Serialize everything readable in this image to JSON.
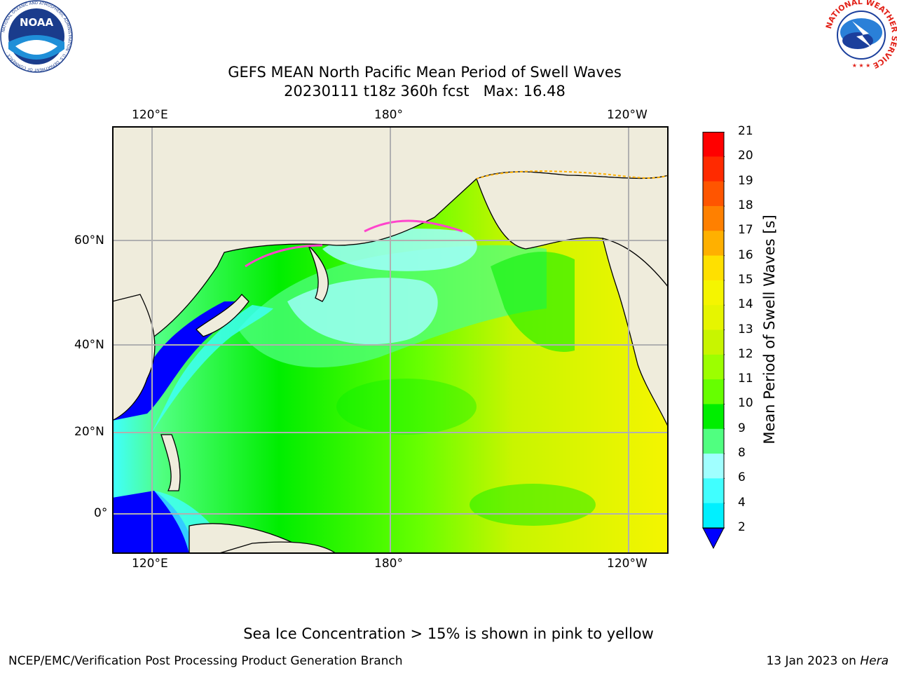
{
  "title": {
    "line1": "GEFS MEAN North Pacific Mean Period of Swell Waves",
    "line2": "20230111 t18z 360h fcst   Max: 16.48"
  },
  "map": {
    "lon_ticks_top": [
      "120°E",
      "180°",
      "120°W"
    ],
    "lon_ticks_bottom": [
      "120°E",
      "180°",
      "120°W"
    ],
    "lat_ticks": [
      "60°N",
      "40°N",
      "20°N",
      "0°"
    ],
    "colors": {
      "land": "#efecdc",
      "coastline": "#000000",
      "gridlines": "#b0b0b0",
      "sea_ice_edge": "#ff44cc"
    }
  },
  "colorbar": {
    "label": "Mean Period of Swell Waves [s]",
    "tick_labels": [
      "21",
      "20",
      "19",
      "18",
      "17",
      "16",
      "15",
      "14",
      "13",
      "12",
      "11",
      "10",
      "9",
      "8",
      "6",
      "4",
      "2"
    ],
    "colors": [
      "#ff0000",
      "#ff2a00",
      "#ff5500",
      "#ff8000",
      "#ffb000",
      "#ffe000",
      "#f5f500",
      "#e6f500",
      "#c8f500",
      "#9cff00",
      "#66ff00",
      "#00ee00",
      "#50ff80",
      "#a0ffff",
      "#40ffff",
      "#00f0ff",
      "#0080ff",
      "#0000ff"
    ]
  },
  "note": "Sea Ice Concentration > 15% is shown in pink to yellow",
  "footer": {
    "left": "NCEP/EMC/Verification Post Processing Product Generation Branch",
    "right_date": "13 Jan 2023 on ",
    "right_machine": "Hera"
  },
  "logos": {
    "noaa_text": "NOAA",
    "noaa_ring": "NATIONAL OCEANIC AND ATMOSPHERIC ADMINISTRATION · U.S. DEPARTMENT OF COMMERCE ·",
    "nws_ring": "NATIONAL WEATHER SERVICE"
  }
}
